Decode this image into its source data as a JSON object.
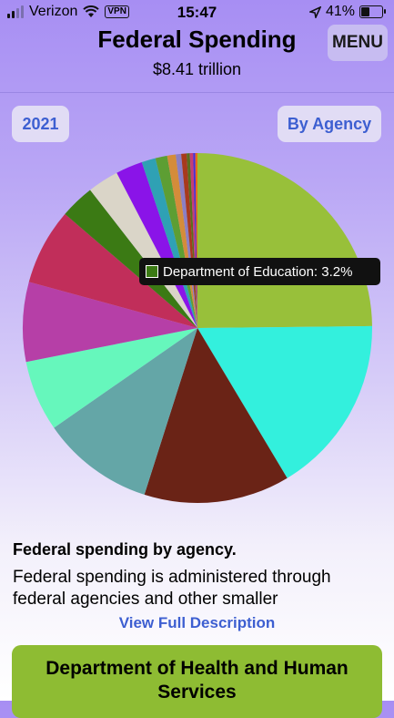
{
  "status_bar": {
    "carrier": "Verizon",
    "vpn": "VPN",
    "time": "15:47",
    "battery": "41%"
  },
  "header": {
    "title": "Federal Spending",
    "total": "$8.41 trillion",
    "menu_label": "MENU"
  },
  "controls": {
    "year": "2021",
    "view": "By Agency"
  },
  "chart_data": {
    "type": "pie",
    "slices": [
      {
        "color": "#98c03a",
        "value": 25.0
      },
      {
        "color": "#33f0dd",
        "value": 16.7
      },
      {
        "color": "#6a2316",
        "value": 13.6
      },
      {
        "color": "#64a6a7",
        "value": 10.5
      },
      {
        "color": "#66f7bc",
        "value": 6.6
      },
      {
        "color": "#b63fa7",
        "value": 7.4
      },
      {
        "color": "#c12e5a",
        "value": 7.1
      },
      {
        "color": "#3b7a14",
        "value": 3.2
      },
      {
        "color": "#dad5c8",
        "value": 2.9
      },
      {
        "color": "#8a14e8",
        "value": 2.5
      },
      {
        "color": "#2fa1b4",
        "value": 1.3
      },
      {
        "color": "#5d9e33",
        "value": 1.1
      },
      {
        "color": "#d48c3a",
        "value": 0.8
      },
      {
        "color": "#8b7fc3",
        "value": 0.5
      },
      {
        "color": "#a83a1c",
        "value": 0.5
      },
      {
        "color": "#5a6e1e",
        "value": 0.3
      },
      {
        "color": "#c43d76",
        "value": 0.3
      },
      {
        "color": "#4b2fd0",
        "value": 0.2
      },
      {
        "color": "#e86a1a",
        "value": 0.2
      }
    ],
    "tooltip": {
      "label": "Department of Education: 3.2%"
    }
  },
  "description": {
    "heading": "Federal spending by agency.",
    "text": "Federal spending is administered through federal agencies and other smaller",
    "link": "View Full Description"
  },
  "card": {
    "title": "Department of Health and Human Services"
  }
}
